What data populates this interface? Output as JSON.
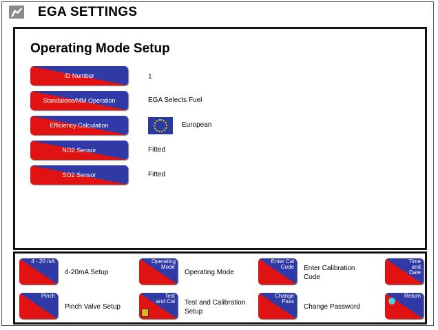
{
  "window": {
    "title": "EGA SETTINGS",
    "icon": "instrument-icon"
  },
  "panel": {
    "title": "Operating Mode Setup"
  },
  "settings": [
    {
      "button": "ID Number",
      "value": "1"
    },
    {
      "button": "Standalone/MM Operation",
      "value": "EGA Selects Fuel"
    },
    {
      "button": "Efficiency Calculation",
      "value": "European",
      "icon": "eu-flag-icon"
    },
    {
      "button": "NO2 Sensor",
      "value": "Fitted"
    },
    {
      "button": "SO2 Sensor",
      "value": "Fitted"
    }
  ],
  "softkeys": [
    {
      "key": "4 - 20 mA",
      "description": "4-20mA Setup"
    },
    {
      "key": "Operating Mode",
      "description": "Operating Mode"
    },
    {
      "key": "Enter Cal Code",
      "description": "Enter Calibration Code"
    },
    {
      "key": "Time and Date",
      "description": ""
    },
    {
      "key": "Pinch",
      "description": "Pinch Valve Setup"
    },
    {
      "key": "Test and Cal",
      "description": "Test and Calibration Setup",
      "icon": "lock-icon"
    },
    {
      "key": "Change Pass",
      "description": "Change Password"
    },
    {
      "key": "Return",
      "description": "",
      "icon": "return-dot-icon"
    }
  ],
  "colors": {
    "button_red": "#e01212",
    "button_blue": "#2f3aa6",
    "flag_blue": "#2a3a9e",
    "flag_stars": "#f2d51a"
  }
}
